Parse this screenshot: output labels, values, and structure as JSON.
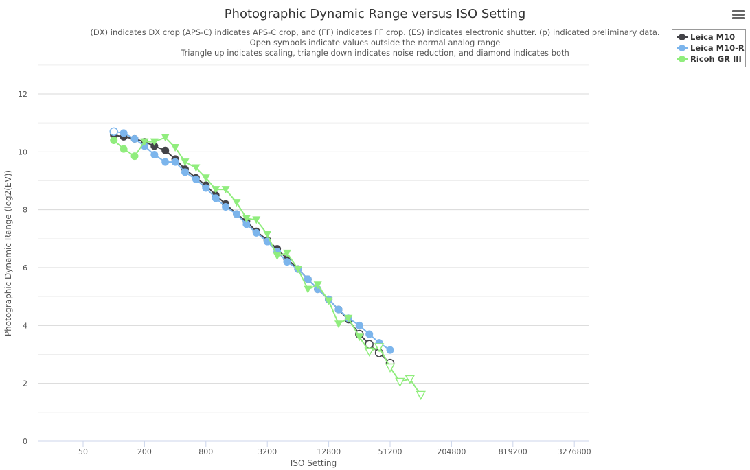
{
  "chart_data": {
    "type": "line",
    "title": "Photographic Dynamic Range versus ISO Setting",
    "subtitles": [
      "(DX) indicates DX crop (APS-C) indicates APS-C crop, and (FF) indicates FF crop. (ES) indicates electronic shutter. (p) indicated preliminary data.",
      "Open symbols indicate values outside the normal analog range",
      "Triangle up indicates scaling, triangle down indicates noise reduction, and diamond indicates both"
    ],
    "xlabel": "ISO Setting",
    "ylabel": "Photographic Dynamic Range (log2(EV))",
    "xscale": "log2",
    "xlim": [
      25,
      4500000
    ],
    "ylim": [
      0,
      13
    ],
    "xticks": [
      "50",
      "200",
      "800",
      "3200",
      "12800",
      "51200",
      "204800",
      "819200",
      "3276800"
    ],
    "xtick_values": [
      50,
      200,
      800,
      3200,
      12800,
      51200,
      204800,
      819200,
      3276800
    ],
    "yticks": [
      0,
      2,
      4,
      6,
      8,
      10,
      12
    ],
    "grid": true,
    "legend_position": "top-right",
    "iso": [
      100,
      125,
      160,
      200,
      250,
      320,
      400,
      500,
      640,
      800,
      1000,
      1250,
      1600,
      2000,
      2500,
      3200,
      4000,
      5000,
      6400,
      8000,
      10000,
      12800,
      16000,
      20000,
      25600,
      32000,
      40000,
      51200,
      64000,
      80000,
      102400
    ],
    "series": [
      {
        "name": "Leica M10",
        "color": "#434348",
        "values": [
          10.58,
          10.52,
          10.45,
          10.35,
          10.2,
          10.05,
          9.75,
          9.4,
          9.1,
          8.85,
          8.5,
          8.2,
          7.85,
          7.6,
          7.25,
          6.95,
          6.65,
          6.3,
          5.95,
          5.6,
          5.25,
          4.9,
          4.55,
          4.2,
          3.7,
          3.35,
          3.05,
          2.7
        ],
        "markers": [
          "circle",
          "circle",
          "circle",
          "circle",
          "circle",
          "circle",
          "circle",
          "circle",
          "circle",
          "circle",
          "circle",
          "circle",
          "circle",
          "circle",
          "circle",
          "circle",
          "circle",
          "circle",
          "circle",
          "circle",
          "circle",
          "circle",
          "circle",
          "circle",
          "circle",
          "circle",
          "circle",
          "circle"
        ],
        "open": [
          false,
          false,
          false,
          false,
          false,
          false,
          false,
          false,
          false,
          false,
          false,
          false,
          false,
          false,
          false,
          false,
          false,
          false,
          false,
          false,
          false,
          false,
          false,
          false,
          true,
          true,
          true,
          true
        ]
      },
      {
        "name": "Leica M10-R",
        "color": "#7cb5ec",
        "values": [
          10.7,
          10.65,
          10.45,
          10.2,
          9.9,
          9.65,
          9.65,
          9.3,
          9.05,
          8.75,
          8.4,
          8.1,
          7.85,
          7.5,
          7.2,
          6.9,
          6.55,
          6.2,
          5.95,
          5.6,
          5.25,
          4.9,
          4.55,
          4.25,
          4.0,
          3.7,
          3.4,
          3.15
        ],
        "markers": [
          "circle",
          "circle",
          "circle",
          "circle",
          "circle",
          "circle",
          "circle",
          "circle",
          "circle",
          "circle",
          "circle",
          "circle",
          "circle",
          "circle",
          "circle",
          "circle",
          "circle",
          "circle",
          "circle",
          "circle",
          "circle",
          "circle",
          "circle",
          "circle",
          "circle",
          "circle",
          "circle",
          "circle"
        ],
        "open": [
          true,
          false,
          false,
          false,
          false,
          false,
          false,
          false,
          false,
          false,
          false,
          false,
          false,
          false,
          false,
          false,
          false,
          false,
          false,
          false,
          false,
          false,
          false,
          false,
          false,
          false,
          false,
          false
        ]
      },
      {
        "name": "Ricoh GR III",
        "color": "#90ed7d",
        "values": [
          10.4,
          10.1,
          9.85,
          10.35,
          10.35,
          10.5,
          10.15,
          9.65,
          9.45,
          9.1,
          8.7,
          8.7,
          8.25,
          7.7,
          7.65,
          7.15,
          6.4,
          6.5,
          5.95,
          5.25,
          5.4,
          4.85,
          4.05,
          4.25,
          3.6,
          3.1,
          3.25,
          2.55,
          2.05,
          2.15,
          1.6
        ],
        "markers": [
          "circle",
          "circle",
          "circle",
          "tri-down",
          "tri-down",
          "tri-down",
          "tri-down",
          "tri-down",
          "tri-down",
          "tri-down",
          "tri-down",
          "tri-down",
          "tri-down",
          "tri-down",
          "tri-down",
          "tri-down",
          "tri-down",
          "tri-down",
          "tri-down",
          "tri-down",
          "tri-down",
          "tri-down",
          "tri-down",
          "tri-down",
          "tri-down",
          "tri-down",
          "tri-down",
          "tri-down",
          "tri-down",
          "tri-down",
          "tri-down"
        ],
        "open": [
          false,
          false,
          false,
          false,
          false,
          false,
          false,
          false,
          false,
          false,
          false,
          false,
          false,
          false,
          false,
          false,
          false,
          false,
          false,
          false,
          false,
          false,
          false,
          false,
          false,
          true,
          true,
          true,
          true,
          true,
          true
        ]
      }
    ]
  }
}
